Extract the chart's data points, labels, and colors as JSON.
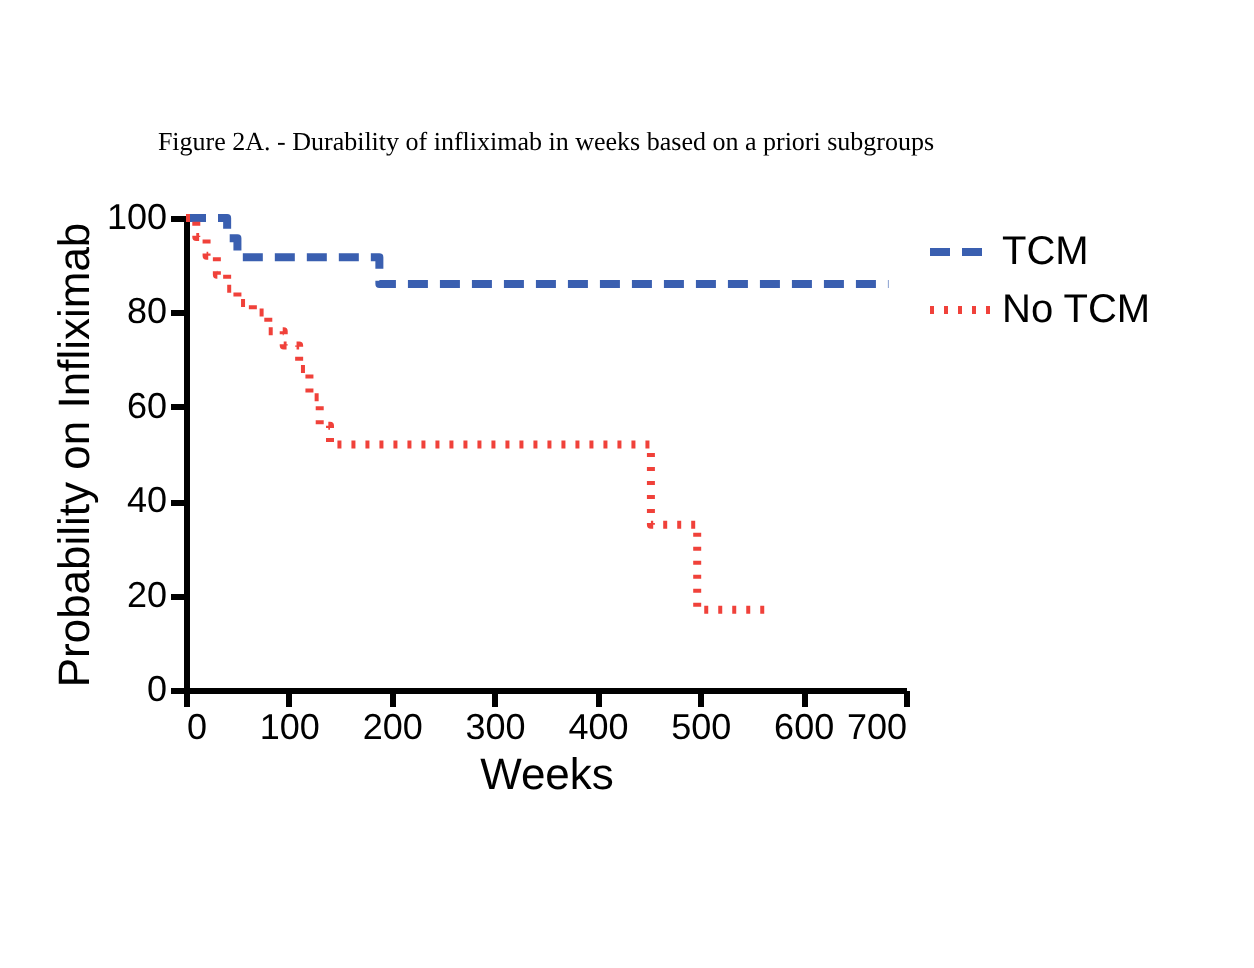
{
  "chart_data": {
    "type": "step",
    "title": "Figure 2A.  - Durability of infliximab in weeks based on a priori subgroups",
    "xlabel": "Weeks",
    "ylabel": "Probability on Infliximab",
    "series": [
      {
        "name": "TCM",
        "color": "#3a5fb0",
        "line_style": "dashed",
        "x": [
          0,
          40,
          50,
          188,
          683
        ],
        "values": [
          100,
          95.7,
          91.7,
          86,
          86
        ]
      },
      {
        "name": "No TCM",
        "color": "#f0413a",
        "line_style": "dotted",
        "x": [
          0,
          10,
          20,
          30,
          40,
          50,
          65,
          80,
          95,
          110,
          120,
          130,
          140,
          452,
          497,
          563
        ],
        "values": [
          100,
          96,
          92,
          88,
          85,
          82,
          80,
          76,
          73,
          68,
          62,
          56,
          52,
          35,
          17,
          17
        ]
      }
    ],
    "xlim": [
      0,
      700
    ],
    "ylim": [
      0,
      100
    ],
    "xticks": [
      0,
      100,
      200,
      300,
      400,
      500,
      600,
      700
    ],
    "yticks": [
      0,
      20,
      40,
      60,
      80,
      100
    ],
    "grid": false,
    "legend": "top right",
    "marker": "none"
  }
}
